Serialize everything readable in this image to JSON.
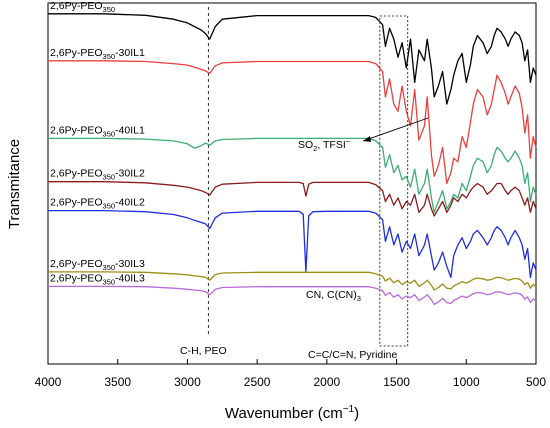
{
  "chart_data": {
    "type": "line",
    "title": "",
    "xlabel": "Wavenumber (cm",
    "xlabel_sup": "−1",
    "xlabel_tail": ")",
    "ylabel": "Transmitance",
    "xlim": [
      4000,
      500
    ],
    "x_reversed": true,
    "x_ticks": [
      4000,
      3500,
      3000,
      2500,
      2000,
      1500,
      1000,
      500
    ],
    "grid": false,
    "legend": "none",
    "series": [
      {
        "name_main": "2,6Py-PEO",
        "name_sub": "350",
        "name_tail": "",
        "color": "#000000",
        "x": [
          4000,
          3600,
          3300,
          3100,
          3000,
          2950,
          2900,
          2870,
          2840,
          2800,
          2750,
          2500,
          2200,
          2000,
          1800,
          1700,
          1650,
          1600,
          1580,
          1550,
          1520,
          1490,
          1460,
          1430,
          1400,
          1370,
          1340,
          1300,
          1280,
          1250,
          1230,
          1200,
          1170,
          1140,
          1110,
          1090,
          1060,
          1030,
          1000,
          970,
          950,
          920,
          880,
          850,
          820,
          800,
          780,
          750,
          720,
          700,
          680,
          650,
          620,
          600,
          580,
          560,
          540,
          520,
          500
        ],
        "y": [
          0.97,
          0.97,
          0.966,
          0.955,
          0.945,
          0.935,
          0.925,
          0.915,
          0.9,
          0.935,
          0.955,
          0.965,
          0.965,
          0.965,
          0.965,
          0.965,
          0.96,
          0.94,
          0.88,
          0.93,
          0.9,
          0.85,
          0.89,
          0.82,
          0.9,
          0.78,
          0.87,
          0.84,
          0.9,
          0.82,
          0.74,
          0.77,
          0.81,
          0.72,
          0.76,
          0.8,
          0.84,
          0.86,
          0.78,
          0.83,
          0.88,
          0.91,
          0.89,
          0.86,
          0.88,
          0.91,
          0.93,
          0.92,
          0.9,
          0.88,
          0.9,
          0.92,
          0.91,
          0.89,
          0.84,
          0.87,
          0.78,
          0.82,
          0.8
        ]
      },
      {
        "name_main": "2,6Py-PEO",
        "name_sub": "350",
        "name_tail": "-30IL1",
        "color": "#e8413e",
        "x": [
          4000,
          3600,
          3300,
          3100,
          3000,
          2950,
          2900,
          2870,
          2840,
          2800,
          2750,
          2500,
          2200,
          2000,
          1800,
          1700,
          1650,
          1600,
          1580,
          1550,
          1520,
          1490,
          1460,
          1430,
          1400,
          1370,
          1340,
          1300,
          1280,
          1250,
          1230,
          1200,
          1170,
          1140,
          1110,
          1090,
          1060,
          1030,
          1000,
          970,
          950,
          920,
          880,
          850,
          820,
          800,
          780,
          750,
          720,
          700,
          680,
          650,
          620,
          600,
          580,
          560,
          540,
          520,
          500
        ],
        "y": [
          0.84,
          0.84,
          0.838,
          0.832,
          0.828,
          0.822,
          0.816,
          0.812,
          0.805,
          0.826,
          0.834,
          0.838,
          0.838,
          0.838,
          0.838,
          0.838,
          0.832,
          0.81,
          0.74,
          0.79,
          0.72,
          0.7,
          0.77,
          0.7,
          0.66,
          0.76,
          0.62,
          0.66,
          0.74,
          0.58,
          0.52,
          0.55,
          0.6,
          0.5,
          0.53,
          0.57,
          0.56,
          0.63,
          0.6,
          0.67,
          0.72,
          0.76,
          0.74,
          0.69,
          0.72,
          0.76,
          0.8,
          0.78,
          0.75,
          0.72,
          0.74,
          0.77,
          0.75,
          0.71,
          0.64,
          0.69,
          0.57,
          0.63,
          0.6
        ]
      },
      {
        "name_main": "2,6Py-PEO",
        "name_sub": "350",
        "name_tail": "-40IL1",
        "color": "#3dae73",
        "x": [
          4000,
          3600,
          3300,
          3100,
          3000,
          2950,
          2900,
          2870,
          2840,
          2800,
          2750,
          2500,
          2200,
          2000,
          1800,
          1700,
          1650,
          1600,
          1580,
          1550,
          1520,
          1490,
          1460,
          1430,
          1400,
          1370,
          1340,
          1300,
          1280,
          1250,
          1230,
          1200,
          1170,
          1140,
          1110,
          1090,
          1060,
          1030,
          1000,
          970,
          950,
          920,
          880,
          850,
          820,
          800,
          780,
          750,
          720,
          700,
          680,
          650,
          620,
          600,
          580,
          560,
          540,
          520,
          500
        ],
        "y": [
          0.625,
          0.625,
          0.623,
          0.618,
          0.61,
          0.598,
          0.605,
          0.612,
          0.606,
          0.618,
          0.622,
          0.625,
          0.625,
          0.625,
          0.625,
          0.625,
          0.618,
          0.6,
          0.545,
          0.58,
          0.53,
          0.55,
          0.51,
          0.52,
          0.49,
          0.54,
          0.47,
          0.5,
          0.54,
          0.46,
          0.42,
          0.45,
          0.48,
          0.43,
          0.45,
          0.47,
          0.46,
          0.5,
          0.48,
          0.52,
          0.55,
          0.57,
          0.56,
          0.53,
          0.55,
          0.58,
          0.6,
          0.59,
          0.57,
          0.56,
          0.57,
          0.59,
          0.57,
          0.55,
          0.5,
          0.53,
          0.45,
          0.49,
          0.47
        ]
      },
      {
        "name_main": "2,6Py-PEO",
        "name_sub": "350",
        "name_tail": "-30IL2",
        "color": "#8b1c1c",
        "x": [
          4000,
          3600,
          3300,
          3100,
          3000,
          2950,
          2900,
          2870,
          2840,
          2800,
          2750,
          2500,
          2200,
          2170,
          2150,
          2130,
          2100,
          2000,
          1800,
          1700,
          1650,
          1600,
          1580,
          1550,
          1520,
          1490,
          1460,
          1430,
          1400,
          1370,
          1340,
          1300,
          1280,
          1250,
          1230,
          1200,
          1170,
          1140,
          1110,
          1090,
          1060,
          1030,
          1000,
          970,
          950,
          920,
          880,
          850,
          820,
          800,
          780,
          750,
          720,
          700,
          680,
          650,
          620,
          600,
          580,
          560,
          540,
          520,
          500
        ],
        "y": [
          0.505,
          0.505,
          0.502,
          0.495,
          0.49,
          0.485,
          0.48,
          0.475,
          0.468,
          0.49,
          0.498,
          0.503,
          0.503,
          0.5,
          0.465,
          0.498,
          0.503,
          0.503,
          0.503,
          0.503,
          0.497,
          0.48,
          0.45,
          0.47,
          0.44,
          0.46,
          0.43,
          0.45,
          0.44,
          0.47,
          0.42,
          0.44,
          0.47,
          0.43,
          0.41,
          0.43,
          0.45,
          0.42,
          0.44,
          0.46,
          0.45,
          0.47,
          0.46,
          0.48,
          0.49,
          0.5,
          0.49,
          0.47,
          0.48,
          0.49,
          0.5,
          0.5,
          0.48,
          0.47,
          0.48,
          0.49,
          0.48,
          0.46,
          0.44,
          0.46,
          0.42,
          0.45,
          0.43
        ]
      },
      {
        "name_main": "2,6Py-PEO",
        "name_sub": "350",
        "name_tail": "-40IL2",
        "color": "#1f2ee0",
        "x": [
          4000,
          3600,
          3300,
          3100,
          3000,
          2950,
          2900,
          2870,
          2840,
          2800,
          2750,
          2500,
          2200,
          2170,
          2150,
          2130,
          2100,
          2000,
          1800,
          1700,
          1650,
          1600,
          1580,
          1550,
          1520,
          1490,
          1460,
          1430,
          1400,
          1370,
          1340,
          1300,
          1280,
          1250,
          1230,
          1200,
          1170,
          1140,
          1110,
          1090,
          1060,
          1030,
          1000,
          970,
          950,
          920,
          880,
          850,
          820,
          800,
          780,
          750,
          720,
          700,
          680,
          650,
          620,
          600,
          580,
          560,
          540,
          520,
          500
        ],
        "y": [
          0.425,
          0.425,
          0.422,
          0.414,
          0.405,
          0.398,
          0.392,
          0.388,
          0.375,
          0.405,
          0.418,
          0.423,
          0.423,
          0.415,
          0.255,
          0.41,
          0.422,
          0.423,
          0.423,
          0.423,
          0.418,
          0.4,
          0.34,
          0.38,
          0.33,
          0.36,
          0.31,
          0.34,
          0.32,
          0.36,
          0.3,
          0.33,
          0.36,
          0.3,
          0.26,
          0.28,
          0.31,
          0.27,
          0.24,
          0.3,
          0.33,
          0.35,
          0.32,
          0.34,
          0.36,
          0.37,
          0.35,
          0.33,
          0.35,
          0.37,
          0.38,
          0.37,
          0.35,
          0.33,
          0.35,
          0.37,
          0.35,
          0.33,
          0.29,
          0.32,
          0.24,
          0.28,
          0.26
        ]
      },
      {
        "name_main": "2,6Py-PEO",
        "name_sub": "350",
        "name_tail": "-30IL3",
        "color": "#9a8e15",
        "x": [
          4000,
          3600,
          3300,
          3100,
          3000,
          2950,
          2900,
          2870,
          2840,
          2800,
          2750,
          2500,
          2200,
          2000,
          1800,
          1700,
          1650,
          1600,
          1580,
          1550,
          1520,
          1490,
          1460,
          1430,
          1400,
          1370,
          1340,
          1300,
          1280,
          1250,
          1230,
          1200,
          1170,
          1140,
          1110,
          1090,
          1060,
          1030,
          1000,
          970,
          950,
          920,
          880,
          850,
          820,
          800,
          780,
          750,
          720,
          700,
          680,
          650,
          620,
          600,
          580,
          560,
          540,
          520,
          500
        ],
        "y": [
          0.255,
          0.255,
          0.254,
          0.25,
          0.247,
          0.244,
          0.242,
          0.24,
          0.232,
          0.248,
          0.252,
          0.254,
          0.254,
          0.254,
          0.254,
          0.254,
          0.25,
          0.243,
          0.23,
          0.238,
          0.225,
          0.232,
          0.22,
          0.228,
          0.224,
          0.232,
          0.215,
          0.225,
          0.232,
          0.218,
          0.205,
          0.212,
          0.222,
          0.21,
          0.208,
          0.216,
          0.222,
          0.228,
          0.224,
          0.23,
          0.235,
          0.238,
          0.236,
          0.232,
          0.234,
          0.238,
          0.24,
          0.239,
          0.235,
          0.232,
          0.234,
          0.237,
          0.235,
          0.23,
          0.22,
          0.226,
          0.21,
          0.22,
          0.215
        ]
      },
      {
        "name_main": "2,6Py-PEO",
        "name_sub": "350",
        "name_tail": "-40IL3",
        "color": "#b86adb",
        "x": [
          4000,
          3600,
          3300,
          3100,
          3000,
          2950,
          2900,
          2870,
          2840,
          2800,
          2750,
          2500,
          2200,
          2000,
          1800,
          1700,
          1650,
          1600,
          1580,
          1550,
          1520,
          1490,
          1460,
          1430,
          1400,
          1370,
          1340,
          1300,
          1280,
          1250,
          1230,
          1200,
          1170,
          1140,
          1110,
          1090,
          1060,
          1030,
          1000,
          970,
          950,
          920,
          880,
          850,
          820,
          800,
          780,
          750,
          720,
          700,
          680,
          650,
          620,
          600,
          580,
          560,
          540,
          520,
          500
        ],
        "y": [
          0.215,
          0.215,
          0.214,
          0.21,
          0.207,
          0.205,
          0.203,
          0.2,
          0.192,
          0.207,
          0.212,
          0.214,
          0.214,
          0.214,
          0.214,
          0.214,
          0.21,
          0.203,
          0.19,
          0.198,
          0.185,
          0.192,
          0.18,
          0.188,
          0.184,
          0.192,
          0.176,
          0.185,
          0.192,
          0.178,
          0.165,
          0.172,
          0.182,
          0.17,
          0.168,
          0.176,
          0.182,
          0.188,
          0.184,
          0.19,
          0.195,
          0.198,
          0.196,
          0.192,
          0.194,
          0.198,
          0.2,
          0.199,
          0.195,
          0.192,
          0.194,
          0.197,
          0.195,
          0.19,
          0.18,
          0.186,
          0.17,
          0.18,
          0.175
        ]
      }
    ],
    "reference_line": {
      "x": 2850,
      "style": "dashed"
    },
    "highlight_box": {
      "x_range": [
        1620,
        1420
      ],
      "style": "dotted"
    },
    "annotations": [
      {
        "id": "ch",
        "text": "C-H, PEO"
      },
      {
        "id": "cn",
        "text_main": "CN, C(CN)",
        "text_sub": "3"
      },
      {
        "id": "so2",
        "text_a": "SO",
        "text_sub": "2",
        "text_b": ", TFSI",
        "text_sup": "−"
      },
      {
        "id": "py",
        "text": "C=C/C=N, Pyridine"
      }
    ]
  }
}
